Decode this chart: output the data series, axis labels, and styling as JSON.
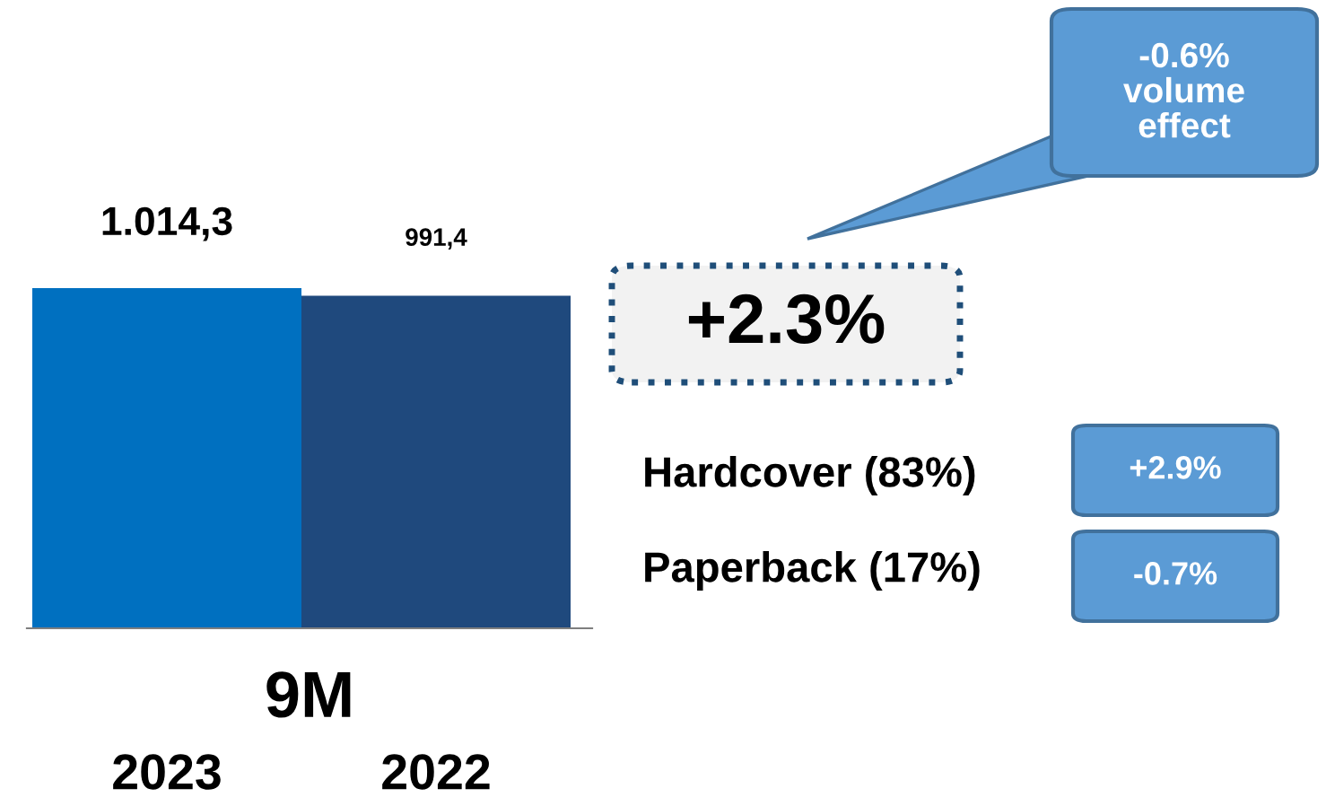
{
  "chart_data": {
    "type": "bar",
    "xlabel": "9M",
    "categories": [
      "2023",
      "2022"
    ],
    "values": [
      1014.3,
      991.4
    ],
    "colors": [
      "#0070c0",
      "#1f497d"
    ],
    "value_labels": [
      "1.014,3",
      "991,4"
    ],
    "annotations": [
      "-0.6%\nvolume\neffect",
      "+2.3%",
      "Hardcover (83%)",
      "+2.9%",
      "Paperback (17%)",
      "-0.7%"
    ],
    "grid": false,
    "legend": false
  }
}
